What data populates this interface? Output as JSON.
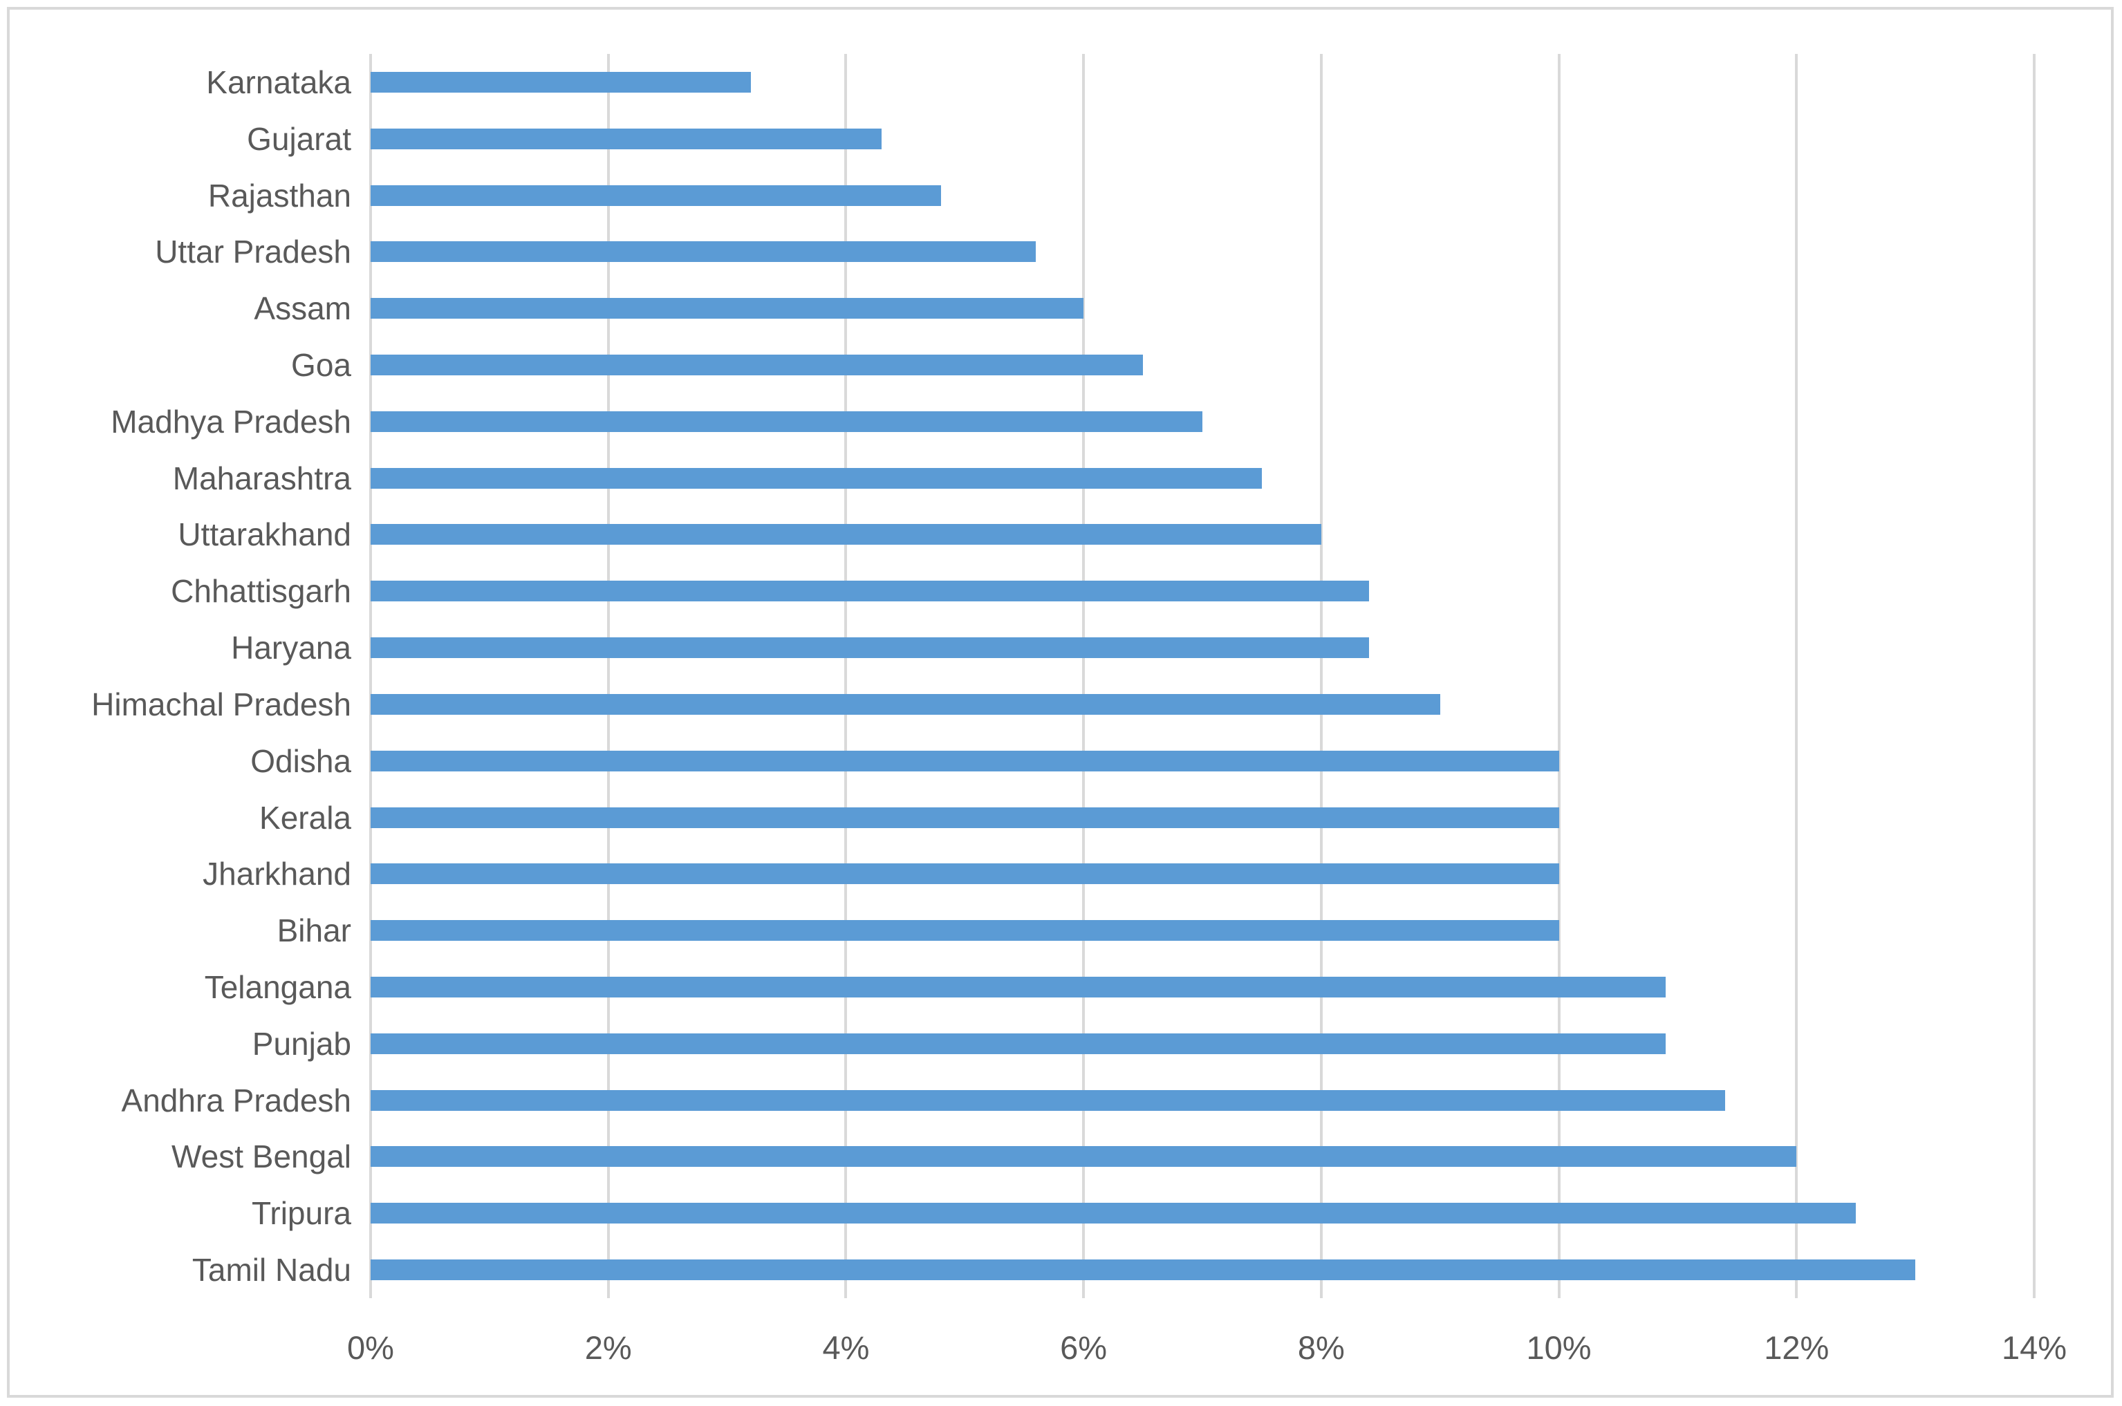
{
  "chart_data": {
    "type": "bar",
    "orientation": "horizontal",
    "title": "",
    "xlabel": "",
    "ylabel": "",
    "xlim": [
      0,
      14
    ],
    "x_tick_values": [
      0,
      2,
      4,
      6,
      8,
      10,
      12,
      14
    ],
    "x_tick_labels": [
      "0%",
      "2%",
      "4%",
      "6%",
      "8%",
      "10%",
      "12%",
      "14%"
    ],
    "grid": true,
    "legend": false,
    "value_unit": "%",
    "categories": [
      "Karnataka",
      "Gujarat",
      "Rajasthan",
      "Uttar Pradesh",
      "Assam",
      "Goa",
      "Madhya Pradesh",
      "Maharashtra",
      "Uttarakhand",
      "Chhattisgarh",
      "Haryana",
      "Himachal Pradesh",
      "Odisha",
      "Kerala",
      "Jharkhand",
      "Bihar",
      "Telangana",
      "Punjab",
      "Andhra Pradesh",
      "West Bengal",
      "Tripura",
      "Tamil Nadu"
    ],
    "values": [
      3.2,
      4.3,
      4.8,
      5.6,
      6.0,
      6.5,
      7.0,
      7.5,
      8.0,
      8.4,
      8.4,
      9.0,
      10.0,
      10.0,
      10.0,
      10.0,
      10.9,
      10.9,
      11.4,
      12.0,
      12.5,
      13.0
    ]
  },
  "colors": {
    "bar": "#5b9bd5",
    "gridline": "#d9d9d9",
    "axis_text": "#595959",
    "chart_border": "#d9d9d9"
  }
}
